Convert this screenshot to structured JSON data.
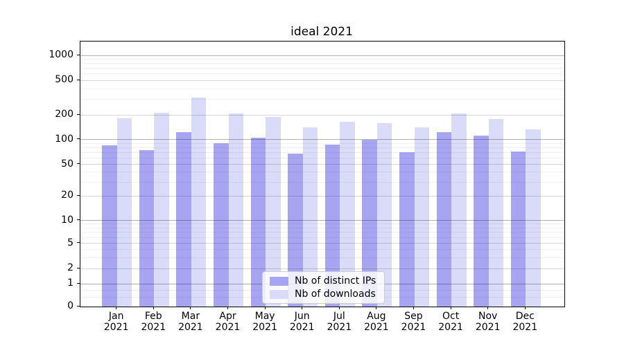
{
  "chart_data": {
    "type": "bar",
    "title": "ideal 2021",
    "categories": [
      "Jan 2021",
      "Feb 2021",
      "Mar 2021",
      "Apr 2021",
      "May 2021",
      "Jun 2021",
      "Jul 2021",
      "Aug 2021",
      "Sep 2021",
      "Oct 2021",
      "Nov 2021",
      "Dec 2021"
    ],
    "series": [
      {
        "name": "Nb of distinct IPs",
        "color": "#a7a5f1",
        "values": [
          85,
          75,
          123,
          90,
          105,
          68,
          87,
          100,
          70,
          123,
          111,
          71
        ]
      },
      {
        "name": "Nb of downloads",
        "color": "#dadaf9",
        "values": [
          180,
          210,
          316,
          208,
          190,
          142,
          165,
          158,
          140,
          208,
          178,
          132
        ]
      }
    ],
    "yticks": [
      0,
      1,
      2,
      5,
      10,
      20,
      50,
      100,
      200,
      500,
      1000
    ],
    "y_scale": "symlog",
    "ylim": [
      0,
      1400
    ],
    "grid": true,
    "legend_position": "lower center",
    "spine_color": "#000000",
    "background_color": "#ffffff"
  }
}
